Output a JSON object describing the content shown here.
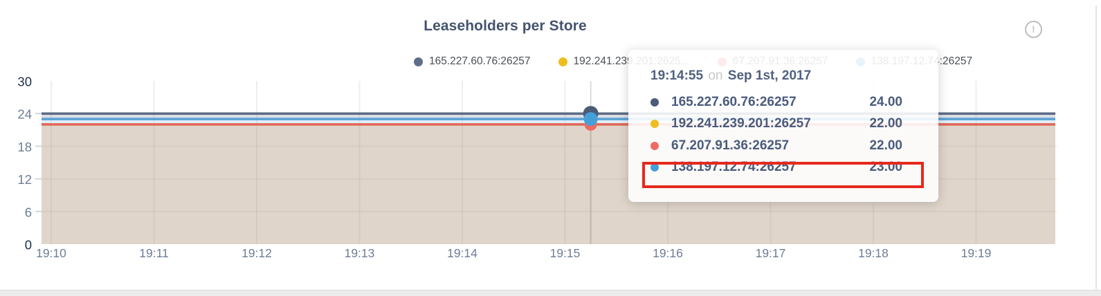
{
  "header": {
    "title": "Leaseholders per Store",
    "info_icon_glyph": "!"
  },
  "legend": {
    "items": [
      {
        "label": "165.227.60.76:26257",
        "color": "#5f6e88"
      },
      {
        "label": "192.241.239.201:2625...",
        "color": "#eebd20"
      },
      {
        "label": "67.207.91.36:26257",
        "color": "#e8615c"
      },
      {
        "label": "138.197.12.74:26257",
        "color": "#4d9fd6"
      }
    ]
  },
  "tooltip": {
    "time": "19:14:55",
    "on_word": "on",
    "date": "Sep 1st, 2017",
    "rows": [
      {
        "name": "165.227.60.76:26257",
        "value": "24.00",
        "color": "#4a5c78",
        "highlighted": false
      },
      {
        "name": "192.241.239.201:26257",
        "value": "22.00",
        "color": "#eebd20",
        "highlighted": false
      },
      {
        "name": "67.207.91.36:26257",
        "value": "22.00",
        "color": "#ed6a64",
        "highlighted": false
      },
      {
        "name": "138.197.12.74:26257",
        "value": "23.00",
        "color": "#459fd8",
        "highlighted": true
      }
    ],
    "highlight_color": "#e6281c"
  },
  "chart_data": {
    "type": "area",
    "title": "Leaseholders per Store",
    "x_ticks": [
      "19:10",
      "19:11",
      "19:12",
      "19:13",
      "19:14",
      "19:15",
      "19:16",
      "19:17",
      "19:18",
      "19:19"
    ],
    "y_ticks": [
      0,
      6,
      12,
      18,
      24,
      30
    ],
    "strong_y_ticks": [
      0,
      30
    ],
    "ylim": [
      0,
      30
    ],
    "grid": true,
    "legend_position": "top",
    "series": [
      {
        "name": "165.227.60.76:26257",
        "color": "#5c6b86",
        "marker_color": "#4a5c78",
        "value": 24,
        "shape": "constant"
      },
      {
        "name": "192.241.239.201:26257",
        "color": "#ecba1e",
        "marker_color": "#ecba1e",
        "value": 22,
        "shape": "constant"
      },
      {
        "name": "67.207.91.36:26257",
        "color": "#e0675f",
        "marker_color": "#ed6a64",
        "value": 22,
        "shape": "constant"
      },
      {
        "name": "138.197.12.74:26257",
        "color": "#57a0d4",
        "marker_color": "#459fd8",
        "value": 23,
        "shape": "constant"
      }
    ],
    "bands": [
      {
        "from": 24,
        "to": 23,
        "color": "rgba(92,107,134,0.22)"
      },
      {
        "from": 23,
        "to": 22,
        "color": "rgba(87,160,212,0.18)"
      },
      {
        "from": 22,
        "to": 0,
        "color": "rgba(178,155,128,0.42)"
      }
    ],
    "hover": {
      "time": "19:14:55",
      "x_offset_minutes": 5.25,
      "values": [
        24,
        22,
        22,
        23
      ]
    },
    "axis_colors": {
      "normal": "#6e7d95",
      "strong": "#1d2d4e"
    }
  }
}
